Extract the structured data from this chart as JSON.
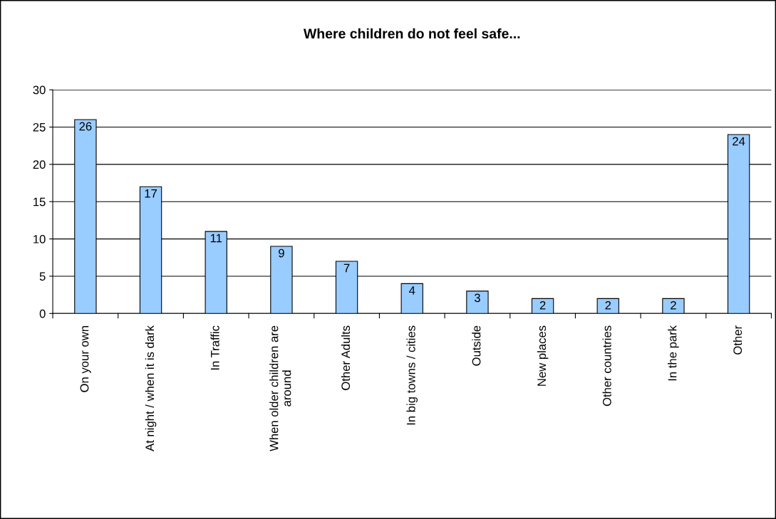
{
  "chart_data": {
    "type": "bar",
    "title": "Where children do not feel safe...",
    "categories": [
      "On your own",
      "At night / when it is dark",
      "In Traffic",
      "When older children are around",
      "Other Adults",
      "In big towns / cities",
      "Outside",
      "New places",
      "Other countries",
      "In the park",
      "Other"
    ],
    "values": [
      26,
      17,
      11,
      9,
      7,
      4,
      3,
      2,
      2,
      2,
      24
    ],
    "color": "#99ccff",
    "ylim": [
      0,
      30
    ],
    "yticks": [
      0,
      5,
      10,
      15,
      20,
      25,
      30
    ],
    "grid": "y",
    "data_labels": true,
    "legend": false
  }
}
